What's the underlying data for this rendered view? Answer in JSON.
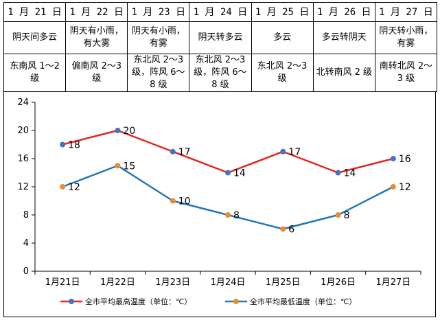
{
  "table": {
    "dates": [
      "1 月 21 日",
      "1 月 22 日",
      "1 月 23 日",
      "1 月 24 日",
      "1 月 25 日",
      "1 月 26 日",
      "1 月 27 日"
    ],
    "weather": [
      "阴天间多云",
      "阴天有小雨，有大雾",
      "阴天有小雨，有雾",
      "阴天转多云",
      "多云",
      "多云转阴天",
      "阴天转小雨，有雾"
    ],
    "wind": [
      "东南风 1～2 级",
      "偏南风 2～3 级",
      "东北风 2～3 级，阵风 6～8 级",
      "东北风 2～3 级，阵风 6～8 级",
      "东北风 2～3 级",
      "北转南风 2 级",
      "南转北风 2～3 级"
    ]
  },
  "chart_data": {
    "type": "line",
    "categories": [
      "1月21日",
      "1月22日",
      "1月23日",
      "1月24日",
      "1月25日",
      "1月26日",
      "1月27日"
    ],
    "series": [
      {
        "name": "全市平均最高温度（单位：℃）",
        "values": [
          18,
          20,
          17,
          14,
          17,
          14,
          16
        ],
        "line_color": "#e8231f",
        "marker_color": "#4472c4"
      },
      {
        "name": "全市平均最低温度（单位：℃）",
        "values": [
          12,
          15,
          10,
          8,
          6,
          8,
          12
        ],
        "line_color": "#1f77b9",
        "marker_color": "#ed8a2f"
      }
    ],
    "ylim": [
      0,
      24
    ],
    "yticks": [
      "0",
      "4",
      "8",
      "12",
      "16",
      "20",
      "24"
    ],
    "grid": false,
    "data_labels": true,
    "legend_placement": "bottom"
  }
}
